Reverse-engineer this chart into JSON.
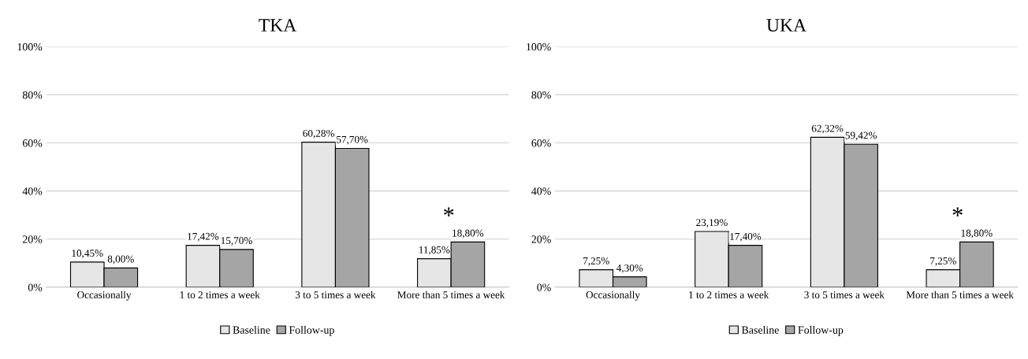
{
  "chart_data": [
    {
      "type": "bar",
      "title": "TKA",
      "categories": [
        "Occasionally",
        "1 to 2 times a week",
        "3 to 5 times a week",
        "More than 5 times a week"
      ],
      "series": [
        {
          "name": "Baseline",
          "color": "#e7e6e6",
          "values": [
            10.45,
            17.42,
            60.28,
            11.85
          ],
          "value_labels": [
            "10,45%",
            "17,42%",
            "60,28%",
            "11,85%"
          ]
        },
        {
          "name": "Follow-up",
          "color": "#a5a5a5",
          "values": [
            8.0,
            15.7,
            57.7,
            18.8
          ],
          "value_labels": [
            "8,00%",
            "15,70%",
            "57,70%",
            "18,80%"
          ]
        }
      ],
      "ylim": [
        0,
        100
      ],
      "yticks": [
        {
          "value": 0,
          "label": "0%"
        },
        {
          "value": 20,
          "label": "20%"
        },
        {
          "value": 40,
          "label": "40%"
        },
        {
          "value": 60,
          "label": "60%"
        },
        {
          "value": 80,
          "label": "80%"
        },
        {
          "value": 100,
          "label": "100%"
        }
      ],
      "grid": "y",
      "legend": "bottom",
      "annotations": [
        "*"
      ]
    },
    {
      "type": "bar",
      "title": "UKA",
      "categories": [
        "Occasionally",
        "1 to 2 times a week",
        "3 to 5 times a week",
        "More than 5 times a week"
      ],
      "series": [
        {
          "name": "Baseline",
          "color": "#e7e6e6",
          "values": [
            7.25,
            23.19,
            62.32,
            7.25
          ],
          "value_labels": [
            "7,25%",
            "23,19%",
            "62,32%",
            "7,25%"
          ]
        },
        {
          "name": "Follow-up",
          "color": "#a5a5a5",
          "values": [
            4.3,
            17.4,
            59.42,
            18.8
          ],
          "value_labels": [
            "4,30%",
            "17,40%",
            "59,42%",
            "18,80%"
          ]
        }
      ],
      "ylim": [
        0,
        100
      ],
      "yticks": [
        {
          "value": 0,
          "label": "0%"
        },
        {
          "value": 20,
          "label": "20%"
        },
        {
          "value": 40,
          "label": "40%"
        },
        {
          "value": 60,
          "label": "60%"
        },
        {
          "value": 80,
          "label": "80%"
        },
        {
          "value": 100,
          "label": "100%"
        }
      ],
      "grid": "y",
      "legend": "bottom",
      "annotations": [
        "*"
      ]
    }
  ]
}
